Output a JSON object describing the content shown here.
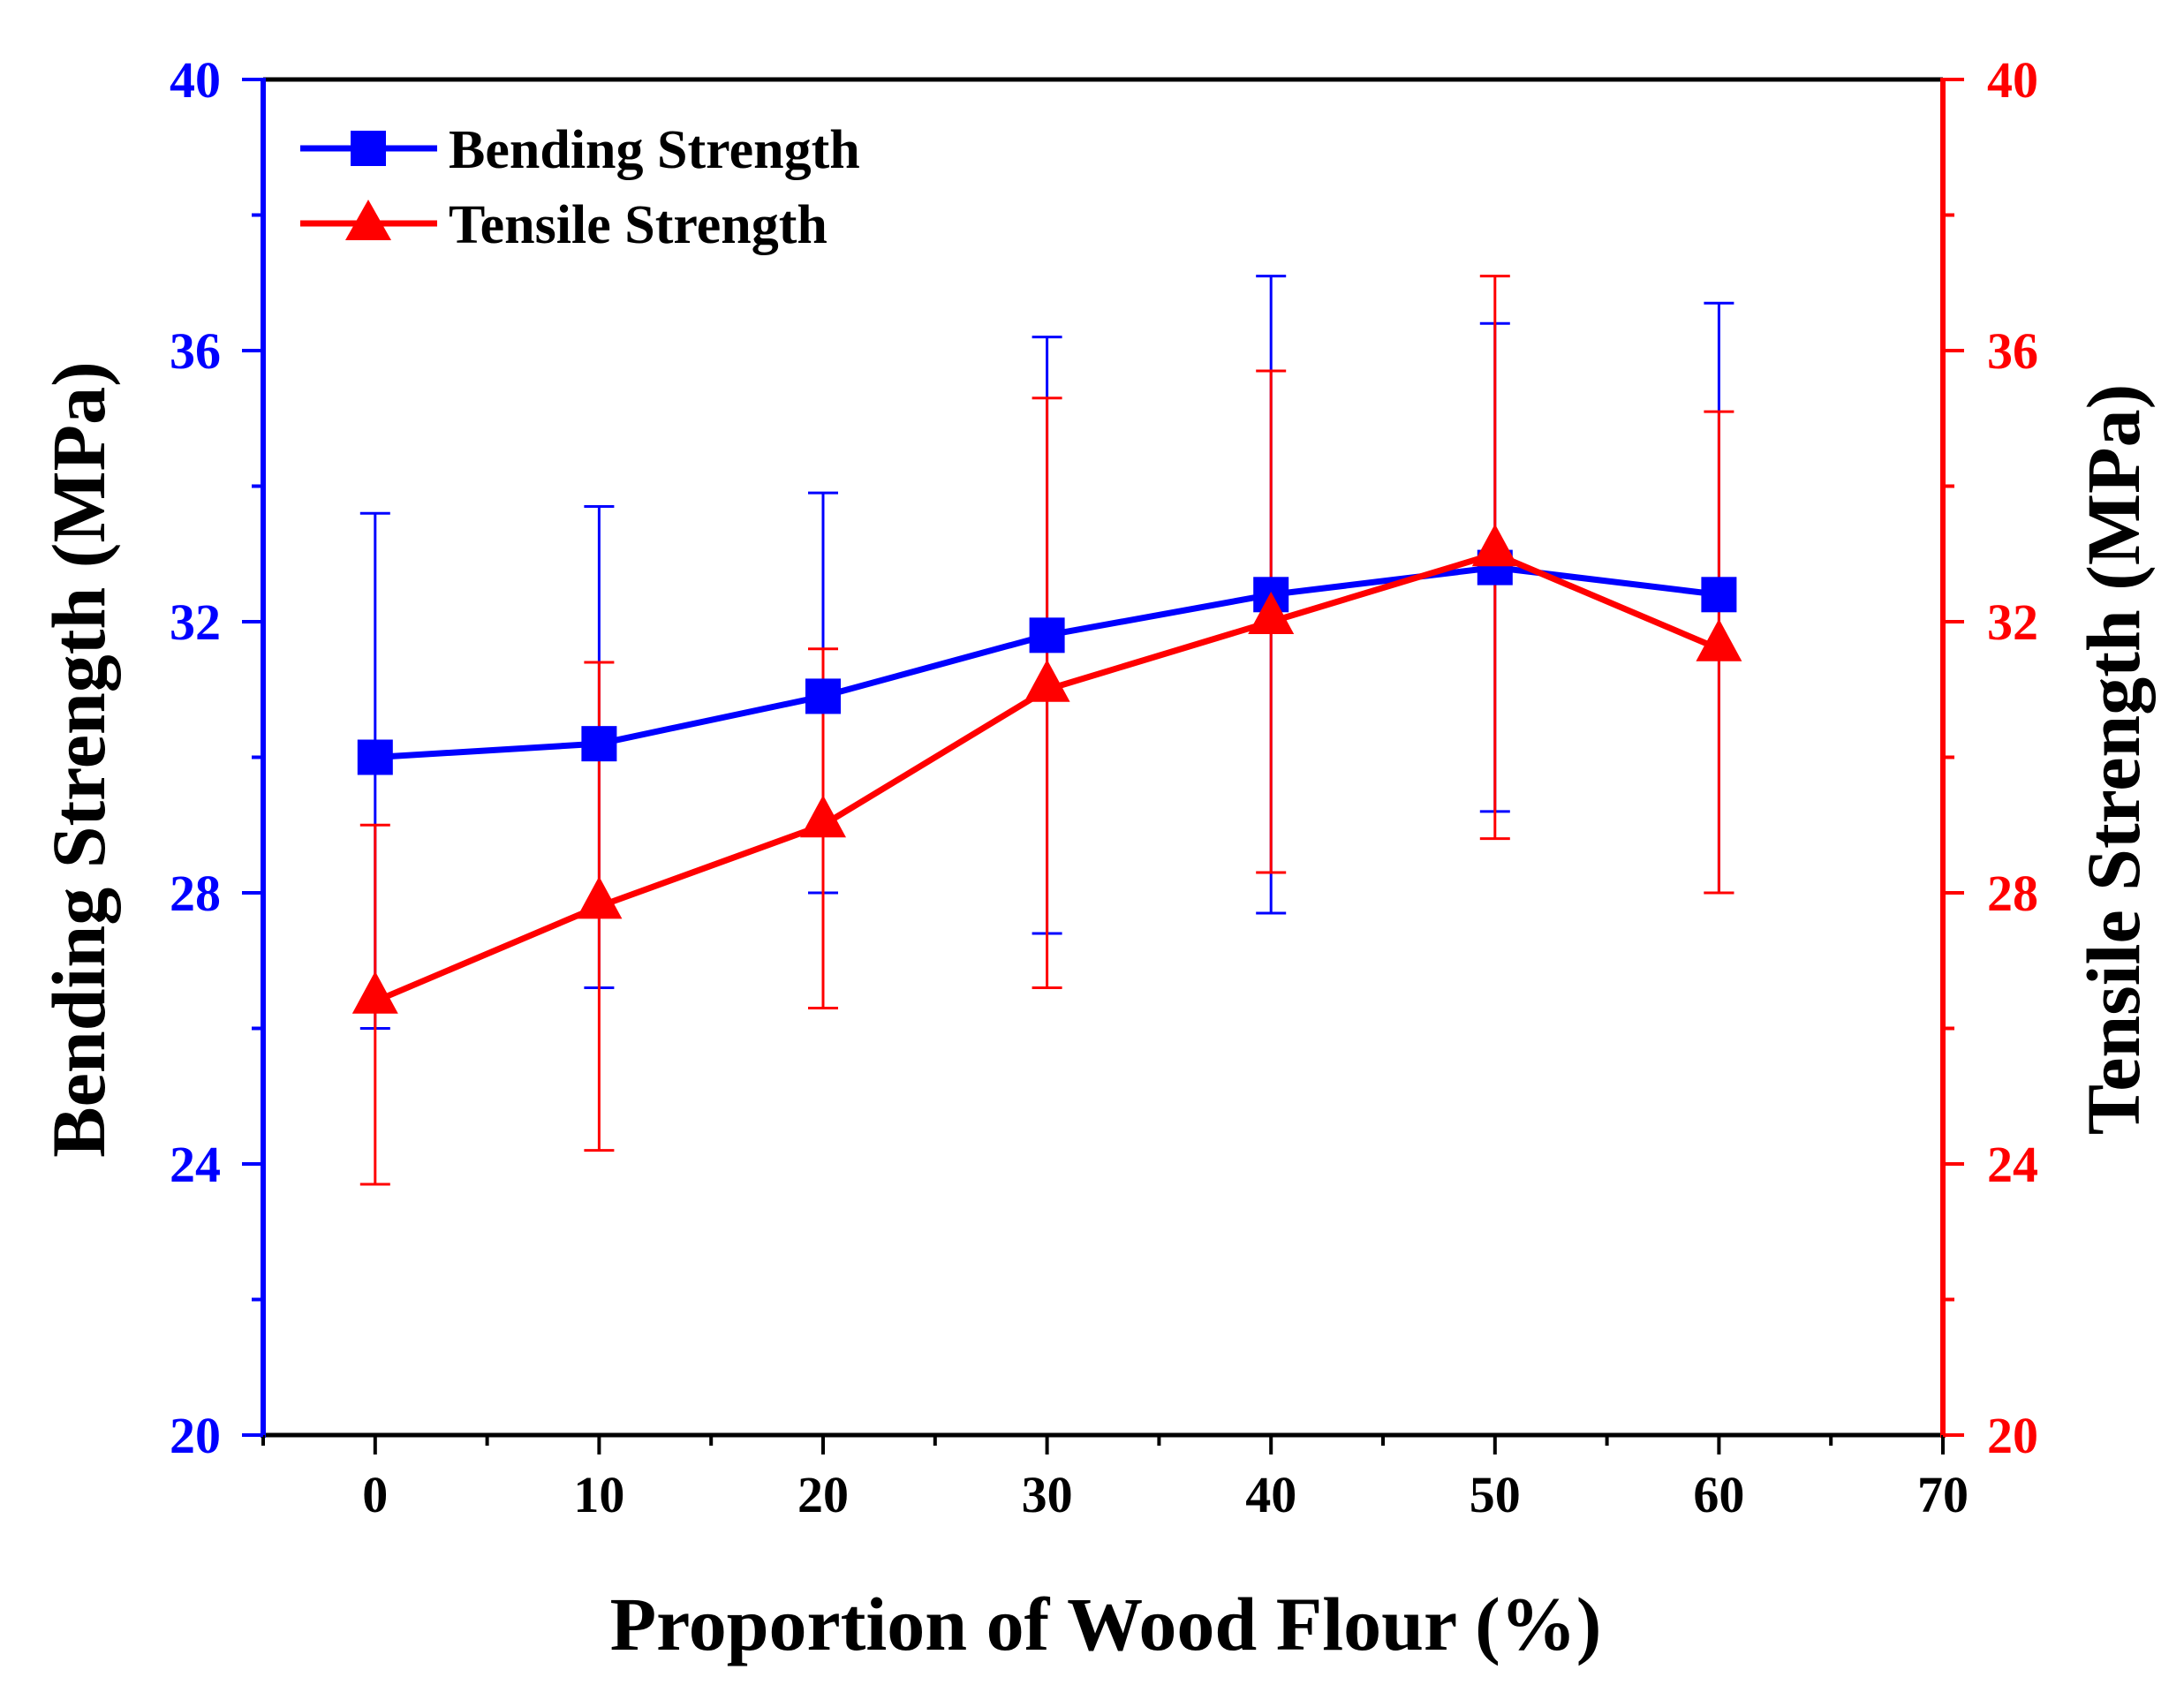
{
  "chart_data": {
    "type": "line",
    "x": [
      0,
      10,
      20,
      30,
      40,
      50,
      60
    ],
    "xlabel": "Proportion of Wood Flour (%)",
    "ylabel_left": "Bending Strength (MPa)",
    "ylabel_right": "Tensile Strength (MPa)",
    "xlim": [
      -5,
      70
    ],
    "ylim_left": [
      20,
      40
    ],
    "ylim_right": [
      20,
      40
    ],
    "x_ticks": [
      "0",
      "10",
      "20",
      "30",
      "40",
      "50",
      "60",
      "70"
    ],
    "y_ticks_left": [
      "20",
      "24",
      "28",
      "32",
      "36",
      "40"
    ],
    "y_ticks_right": [
      "20",
      "24",
      "28",
      "32",
      "36",
      "40"
    ],
    "legend_position": "top-left",
    "series": [
      {
        "name": "Bending Strength",
        "axis": "left",
        "color": "#0000ff",
        "marker": "square",
        "values": [
          30.0,
          30.2,
          30.9,
          31.8,
          32.4,
          32.8,
          32.4
        ],
        "err_low": [
          26.0,
          26.6,
          28.0,
          27.4,
          27.7,
          29.2,
          28.0
        ],
        "err_high": [
          33.6,
          33.7,
          33.9,
          36.2,
          37.1,
          36.4,
          36.7
        ]
      },
      {
        "name": "Tensile Strength",
        "axis": "right",
        "color": "#ff0000",
        "marker": "triangle",
        "values": [
          26.4,
          27.8,
          29.0,
          31.0,
          32.0,
          33.0,
          31.6
        ],
        "err_low": [
          23.7,
          24.2,
          26.3,
          26.6,
          28.3,
          28.8,
          28.0
        ],
        "err_high": [
          29.0,
          31.4,
          31.6,
          35.3,
          35.7,
          37.1,
          35.1
        ]
      }
    ]
  }
}
